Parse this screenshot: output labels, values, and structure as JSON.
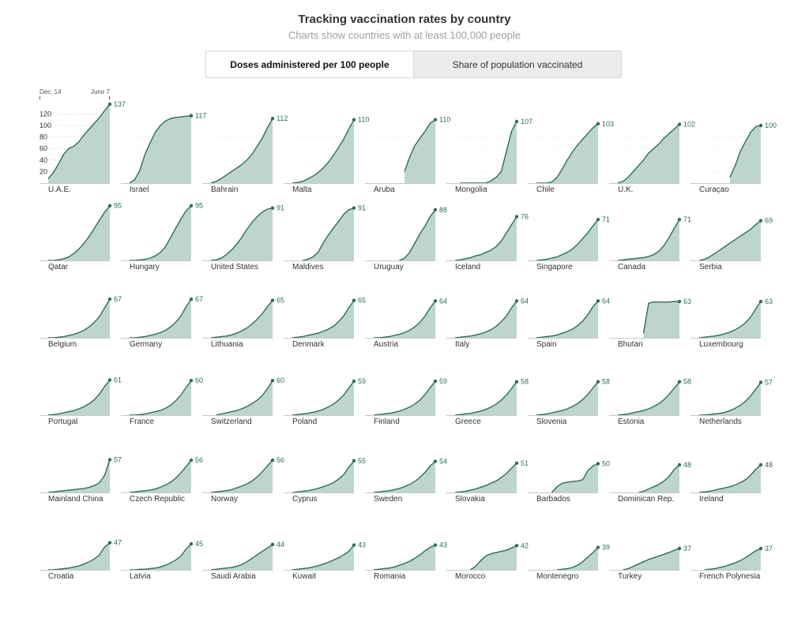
{
  "header": {
    "title": "Tracking vaccination rates by country",
    "subtitle": "Charts show countries with at least 100,000 people"
  },
  "toggle": {
    "active_label": "Doses administered per 100 people",
    "inactive_label": "Share of population vaccinated"
  },
  "colors": {
    "line": "#2e6e5c",
    "fill": "#bdd5cd",
    "axis": "#c8c8c8",
    "grid": "#d9d9d9",
    "label": "#2e6e5c"
  },
  "chart_data": {
    "type": "area",
    "metric": "Doses administered per 100 people",
    "x_start_label": "Dec. 14",
    "x_end_label": "June 7",
    "yticks": [
      20,
      40,
      60,
      80,
      100,
      120
    ],
    "ylim": [
      0,
      137
    ],
    "countries": [
      {
        "name": "U.A.E.",
        "final": 137,
        "values": [
          8,
          18,
          33,
          50,
          60,
          64,
          72,
          84,
          94,
          104,
          114,
          126,
          137
        ]
      },
      {
        "name": "Israel",
        "final": 117,
        "values": [
          0,
          6,
          22,
          50,
          70,
          88,
          100,
          108,
          112,
          114,
          115,
          116,
          117
        ]
      },
      {
        "name": "Bahrain",
        "final": 112,
        "values": [
          0,
          3,
          8,
          14,
          20,
          26,
          32,
          40,
          50,
          64,
          78,
          96,
          112
        ]
      },
      {
        "name": "Malta",
        "final": 110,
        "values": [
          0,
          1,
          3,
          7,
          12,
          18,
          26,
          36,
          48,
          62,
          76,
          94,
          110
        ]
      },
      {
        "name": "Aruba",
        "final": 110,
        "values": [
          null,
          null,
          null,
          null,
          null,
          null,
          20,
          45,
          65,
          78,
          90,
          104,
          110
        ]
      },
      {
        "name": "Mongolia",
        "final": 107,
        "values": [
          null,
          0,
          0,
          0,
          0,
          0,
          0,
          4,
          10,
          20,
          55,
          90,
          107
        ]
      },
      {
        "name": "Chile",
        "final": 103,
        "values": [
          0,
          0,
          0,
          2,
          10,
          24,
          40,
          54,
          66,
          76,
          86,
          96,
          103
        ]
      },
      {
        "name": "U.K.",
        "final": 102,
        "values": [
          0,
          3,
          10,
          20,
          30,
          40,
          52,
          60,
          68,
          78,
          86,
          94,
          102
        ]
      },
      {
        "name": "Curaçao",
        "final": 100,
        "values": [
          null,
          null,
          null,
          null,
          null,
          null,
          10,
          30,
          55,
          72,
          88,
          98,
          100
        ]
      },
      {
        "name": "Qatar",
        "final": 95,
        "values": [
          0,
          0,
          1,
          3,
          6,
          12,
          20,
          30,
          42,
          56,
          70,
          84,
          95
        ]
      },
      {
        "name": "Hungary",
        "final": 95,
        "values": [
          0,
          0,
          1,
          2,
          4,
          8,
          14,
          24,
          40,
          56,
          72,
          86,
          95
        ]
      },
      {
        "name": "United States",
        "final": 91,
        "values": [
          0,
          1,
          4,
          10,
          18,
          28,
          40,
          54,
          66,
          76,
          84,
          89,
          91
        ]
      },
      {
        "name": "Maldives",
        "final": 91,
        "values": [
          null,
          null,
          0,
          2,
          6,
          14,
          30,
          44,
          56,
          68,
          80,
          88,
          91
        ]
      },
      {
        "name": "Uruguay",
        "final": 88,
        "values": [
          null,
          null,
          null,
          null,
          null,
          0,
          4,
          14,
          30,
          46,
          60,
          76,
          88
        ]
      },
      {
        "name": "Iceland",
        "final": 76,
        "values": [
          0,
          1,
          3,
          5,
          8,
          10,
          14,
          18,
          24,
          34,
          48,
          62,
          76
        ]
      },
      {
        "name": "Singapore",
        "final": 71,
        "values": [
          0,
          1,
          2,
          4,
          6,
          10,
          14,
          20,
          28,
          38,
          48,
          60,
          71
        ]
      },
      {
        "name": "Canada",
        "final": 71,
        "values": [
          0,
          1,
          2,
          3,
          4,
          5,
          7,
          10,
          16,
          26,
          40,
          56,
          71
        ]
      },
      {
        "name": "Serbia",
        "final": 69,
        "values": [
          0,
          2,
          6,
          12,
          18,
          24,
          30,
          36,
          42,
          48,
          54,
          62,
          69
        ]
      },
      {
        "name": "Belgium",
        "final": 67,
        "values": [
          0,
          0,
          1,
          2,
          4,
          6,
          9,
          13,
          19,
          27,
          37,
          52,
          67
        ]
      },
      {
        "name": "Germany",
        "final": 67,
        "values": [
          0,
          0,
          1,
          2,
          4,
          6,
          9,
          13,
          19,
          27,
          38,
          54,
          67
        ]
      },
      {
        "name": "Lithuania",
        "final": 65,
        "values": [
          0,
          1,
          2,
          3,
          5,
          8,
          12,
          17,
          24,
          32,
          42,
          54,
          65
        ]
      },
      {
        "name": "Denmark",
        "final": 65,
        "values": [
          0,
          1,
          2,
          4,
          6,
          8,
          11,
          15,
          20,
          28,
          38,
          52,
          65
        ]
      },
      {
        "name": "Austria",
        "final": 64,
        "values": [
          0,
          0,
          1,
          2,
          4,
          6,
          9,
          13,
          19,
          27,
          38,
          52,
          64
        ]
      },
      {
        "name": "Italy",
        "final": 64,
        "values": [
          0,
          1,
          2,
          3,
          5,
          7,
          10,
          14,
          20,
          28,
          38,
          52,
          64
        ]
      },
      {
        "name": "Spain",
        "final": 64,
        "values": [
          0,
          1,
          2,
          3,
          5,
          8,
          11,
          15,
          21,
          29,
          40,
          54,
          64
        ]
      },
      {
        "name": "Bhutan",
        "final": 63,
        "values": [
          null,
          null,
          null,
          null,
          null,
          8,
          60,
          62,
          62,
          62,
          62,
          63,
          63
        ]
      },
      {
        "name": "Luxembourg",
        "final": 63,
        "values": [
          0,
          1,
          2,
          3,
          5,
          7,
          10,
          14,
          19,
          26,
          36,
          50,
          63
        ]
      },
      {
        "name": "Portugal",
        "final": 61,
        "values": [
          0,
          1,
          2,
          4,
          6,
          8,
          11,
          15,
          20,
          27,
          37,
          50,
          61
        ]
      },
      {
        "name": "France",
        "final": 60,
        "values": [
          0,
          0,
          1,
          2,
          4,
          6,
          8,
          12,
          17,
          25,
          35,
          48,
          60
        ]
      },
      {
        "name": "Switzerland",
        "final": 60,
        "values": [
          null,
          0,
          2,
          4,
          6,
          8,
          11,
          15,
          20,
          26,
          34,
          46,
          60
        ]
      },
      {
        "name": "Poland",
        "final": 59,
        "values": [
          0,
          1,
          2,
          3,
          5,
          7,
          10,
          14,
          19,
          26,
          35,
          47,
          59
        ]
      },
      {
        "name": "Finland",
        "final": 59,
        "values": [
          0,
          1,
          2,
          3,
          5,
          7,
          10,
          14,
          19,
          26,
          36,
          48,
          59
        ]
      },
      {
        "name": "Greece",
        "final": 58,
        "values": [
          0,
          1,
          2,
          3,
          5,
          7,
          10,
          14,
          19,
          26,
          35,
          46,
          58
        ]
      },
      {
        "name": "Slovenia",
        "final": 58,
        "values": [
          0,
          1,
          2,
          4,
          6,
          8,
          11,
          15,
          20,
          27,
          36,
          47,
          58
        ]
      },
      {
        "name": "Estonia",
        "final": 58,
        "values": [
          0,
          1,
          2,
          4,
          6,
          8,
          11,
          15,
          20,
          27,
          36,
          47,
          58
        ]
      },
      {
        "name": "Netherlands",
        "final": 57,
        "values": [
          0,
          0,
          1,
          2,
          3,
          5,
          8,
          12,
          17,
          24,
          33,
          45,
          57
        ]
      },
      {
        "name": "Mainland China",
        "final": 57,
        "values": [
          0,
          1,
          2,
          3,
          4,
          5,
          6,
          7,
          9,
          12,
          17,
          30,
          57
        ]
      },
      {
        "name": "Czech Republic",
        "final": 56,
        "values": [
          0,
          1,
          2,
          3,
          4,
          6,
          9,
          13,
          18,
          25,
          34,
          45,
          56
        ]
      },
      {
        "name": "Norway",
        "final": 56,
        "values": [
          0,
          1,
          2,
          3,
          5,
          8,
          11,
          15,
          20,
          27,
          36,
          46,
          56
        ]
      },
      {
        "name": "Cyprus",
        "final": 55,
        "values": [
          0,
          1,
          2,
          3,
          5,
          7,
          10,
          13,
          17,
          23,
          31,
          44,
          55
        ]
      },
      {
        "name": "Sweden",
        "final": 54,
        "values": [
          0,
          1,
          2,
          3,
          5,
          7,
          10,
          14,
          19,
          26,
          35,
          46,
          54
        ]
      },
      {
        "name": "Slovakia",
        "final": 51,
        "values": [
          0,
          1,
          2,
          4,
          6,
          9,
          12,
          16,
          20,
          26,
          33,
          42,
          51
        ]
      },
      {
        "name": "Barbados",
        "final": 50,
        "values": [
          null,
          null,
          null,
          0,
          10,
          16,
          18,
          19,
          20,
          22,
          38,
          46,
          50
        ]
      },
      {
        "name": "Dominican Rep.",
        "final": 48,
        "values": [
          null,
          null,
          null,
          null,
          0,
          2,
          6,
          10,
          14,
          20,
          28,
          40,
          48
        ]
      },
      {
        "name": "Ireland",
        "final": 48,
        "values": [
          0,
          1,
          2,
          4,
          6,
          8,
          10,
          13,
          17,
          22,
          30,
          40,
          48
        ]
      },
      {
        "name": "Croatia",
        "final": 47,
        "values": [
          0,
          0,
          1,
          2,
          3,
          5,
          7,
          10,
          14,
          19,
          26,
          40,
          47
        ]
      },
      {
        "name": "Latvia",
        "final": 45,
        "values": [
          0,
          0,
          1,
          1,
          2,
          3,
          5,
          8,
          12,
          17,
          24,
          36,
          45
        ]
      },
      {
        "name": "Saudi Arabia",
        "final": 44,
        "values": [
          0,
          1,
          2,
          3,
          4,
          6,
          9,
          14,
          20,
          26,
          32,
          38,
          44
        ]
      },
      {
        "name": "Kuwait",
        "final": 43,
        "values": [
          0,
          1,
          2,
          3,
          5,
          7,
          10,
          13,
          17,
          21,
          26,
          32,
          43
        ]
      },
      {
        "name": "Romania",
        "final": 43,
        "values": [
          0,
          1,
          2,
          3,
          5,
          8,
          11,
          15,
          20,
          26,
          33,
          39,
          43
        ]
      },
      {
        "name": "Morocco",
        "final": 42,
        "values": [
          null,
          null,
          null,
          0,
          6,
          16,
          24,
          28,
          30,
          32,
          34,
          38,
          42
        ]
      },
      {
        "name": "Montenegro",
        "final": 39,
        "values": [
          null,
          null,
          null,
          null,
          0,
          1,
          2,
          4,
          8,
          14,
          22,
          30,
          39
        ]
      },
      {
        "name": "Turkey",
        "final": 37,
        "values": [
          null,
          0,
          2,
          6,
          10,
          14,
          18,
          21,
          24,
          27,
          30,
          34,
          37
        ]
      },
      {
        "name": "French Polynesia",
        "final": 37,
        "values": [
          null,
          0,
          1,
          2,
          4,
          6,
          9,
          12,
          16,
          21,
          27,
          33,
          37
        ]
      }
    ]
  }
}
